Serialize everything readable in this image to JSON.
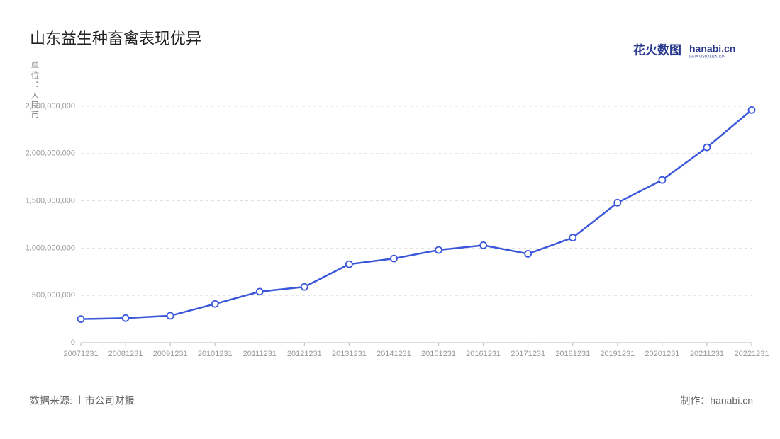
{
  "chart_data": {
    "type": "line",
    "title": "山东益生种畜禽表现优异",
    "y_label": "单位：人民币",
    "source": "数据来源: 上市公司财报",
    "credit": "制作：hanabi.cn",
    "categories": [
      "20071231",
      "20081231",
      "20091231",
      "20101231",
      "20111231",
      "20121231",
      "20131231",
      "20141231",
      "20151231",
      "20161231",
      "20171231",
      "20181231",
      "20191231",
      "20201231",
      "20211231",
      "20221231"
    ],
    "series": [
      {
        "color": "#3b57d9",
        "values": [
          250000000,
          260000000,
          285000000,
          410000000,
          540000000,
          590000000,
          830000000,
          890000000,
          980000000,
          1030000000,
          940000000,
          1110000000,
          1480000000,
          1720000000,
          2065000000,
          2460000000
        ]
      }
    ],
    "ylim": [
      0,
      2500000000
    ],
    "yticks": [
      0,
      {
        "value": 500000000,
        "label": "500,000,000"
      },
      {
        "value": 1000000000,
        "label": "1,000,000,000"
      },
      {
        "value": 1500000000,
        "label": "1,500,000,000"
      },
      {
        "value": 2000000000,
        "label": "2,000,000,000"
      },
      {
        "value": 2500000000,
        "label": "2,500,000,000"
      }
    ],
    "grid": true
  },
  "logo": {
    "brand": "花火数图",
    "site": "hanabi.cn",
    "tagline": "DATA VISUALIZATION"
  }
}
